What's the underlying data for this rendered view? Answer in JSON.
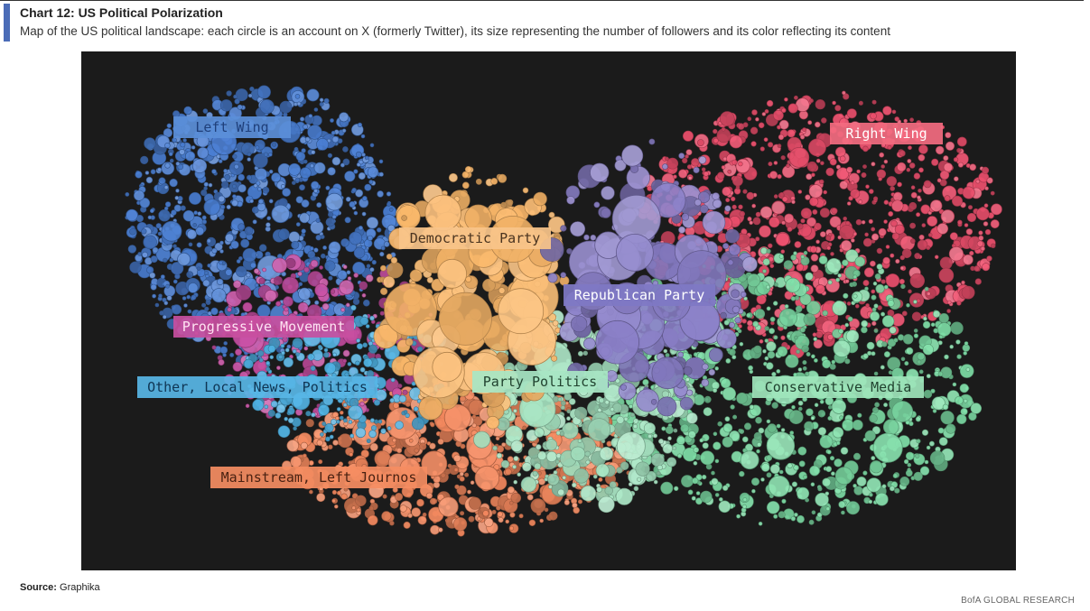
{
  "header": {
    "title": "Chart 12: US Political Polarization",
    "subtitle": "Map of the US political landscape: each circle is an account on X (formerly Twitter), its size representing the number of followers and its color reflecting its content"
  },
  "footer": {
    "source_label": "Source:",
    "source_value": "Graphika",
    "brand": "BofA GLOBAL RESEARCH"
  },
  "chart_data": {
    "type": "scatter",
    "title": "",
    "xlabel": "",
    "ylabel": "",
    "background": "#1b1b1b",
    "clusters": [
      {
        "name": "Left Wing",
        "color": "#4a7fd4",
        "label_bg": "#5b8fd9",
        "label_color": "#1f3f7a"
      },
      {
        "name": "Right Wing",
        "color": "#f0506e",
        "label_bg": "#f36b80",
        "label_color": "#ffffff"
      },
      {
        "name": "Democratic Party",
        "color": "#fbb86a",
        "label_bg": "#f9c48a",
        "label_color": "#4a3420"
      },
      {
        "name": "Republican Party",
        "color": "#8a7fc8",
        "label_bg": "#7f78c4",
        "label_color": "#ffffff"
      },
      {
        "name": "Progressive Movement",
        "color": "#c94fa4",
        "label_bg": "#c84f9f",
        "label_color": "#ffe3f3"
      },
      {
        "name": "Other, Local News, Politics",
        "color": "#4fb4e6",
        "label_bg": "#58b6e6",
        "label_color": "#0f3553"
      },
      {
        "name": "Party Politics",
        "color": "#a8e6c4",
        "label_bg": "#a8e6c4",
        "label_color": "#21422f"
      },
      {
        "name": "Conservative Media",
        "color": "#7fe0a8",
        "label_bg": "#9ee5bb",
        "label_color": "#21422f"
      },
      {
        "name": "Mainstream, Left Journos",
        "color": "#f5895e",
        "label_bg": "#f58d62",
        "label_color": "#4a2212"
      }
    ]
  }
}
